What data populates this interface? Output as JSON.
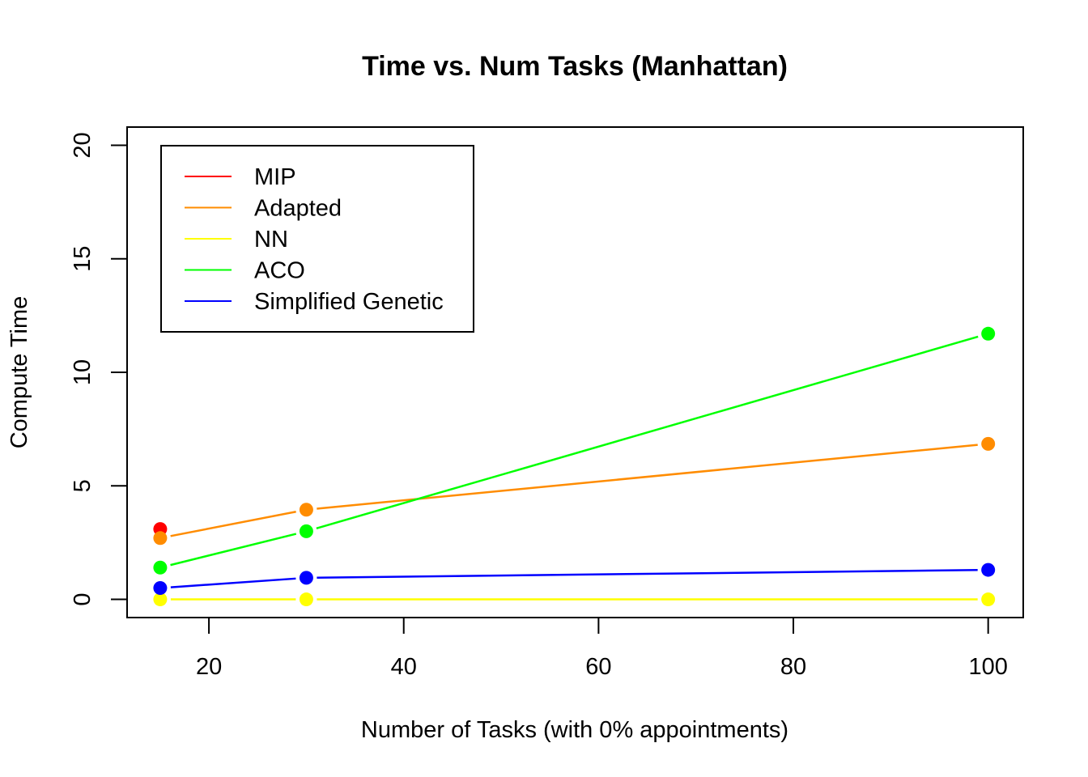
{
  "chart_data": {
    "type": "line",
    "title": "Time vs. Num Tasks (Manhattan)",
    "xlabel": "Number of Tasks (with 0% appointments)",
    "ylabel": "Compute Time",
    "xlim": [
      11.6,
      103.6
    ],
    "ylim": [
      -0.8,
      20.8
    ],
    "xticks": [
      20,
      40,
      60,
      80,
      100
    ],
    "yticks": [
      0,
      5,
      10,
      15,
      20
    ],
    "grid": false,
    "legend_position": "top-left",
    "series": [
      {
        "name": "MIP",
        "color": "#ff0000",
        "x": [
          15
        ],
        "y": [
          3.1
        ]
      },
      {
        "name": "Adapted",
        "color": "#ff8c00",
        "x": [
          15,
          30,
          100
        ],
        "y": [
          2.7,
          3.95,
          6.85
        ]
      },
      {
        "name": "NN",
        "color": "#ffff00",
        "x": [
          15,
          30,
          100
        ],
        "y": [
          0.0,
          0.0,
          0.0
        ]
      },
      {
        "name": "ACO",
        "color": "#00ff00",
        "x": [
          15,
          30,
          100
        ],
        "y": [
          1.4,
          3.0,
          11.7
        ]
      },
      {
        "name": "Simplified Genetic",
        "color": "#0000ff",
        "x": [
          15,
          30,
          100
        ],
        "y": [
          0.5,
          0.95,
          1.3
        ]
      }
    ]
  }
}
